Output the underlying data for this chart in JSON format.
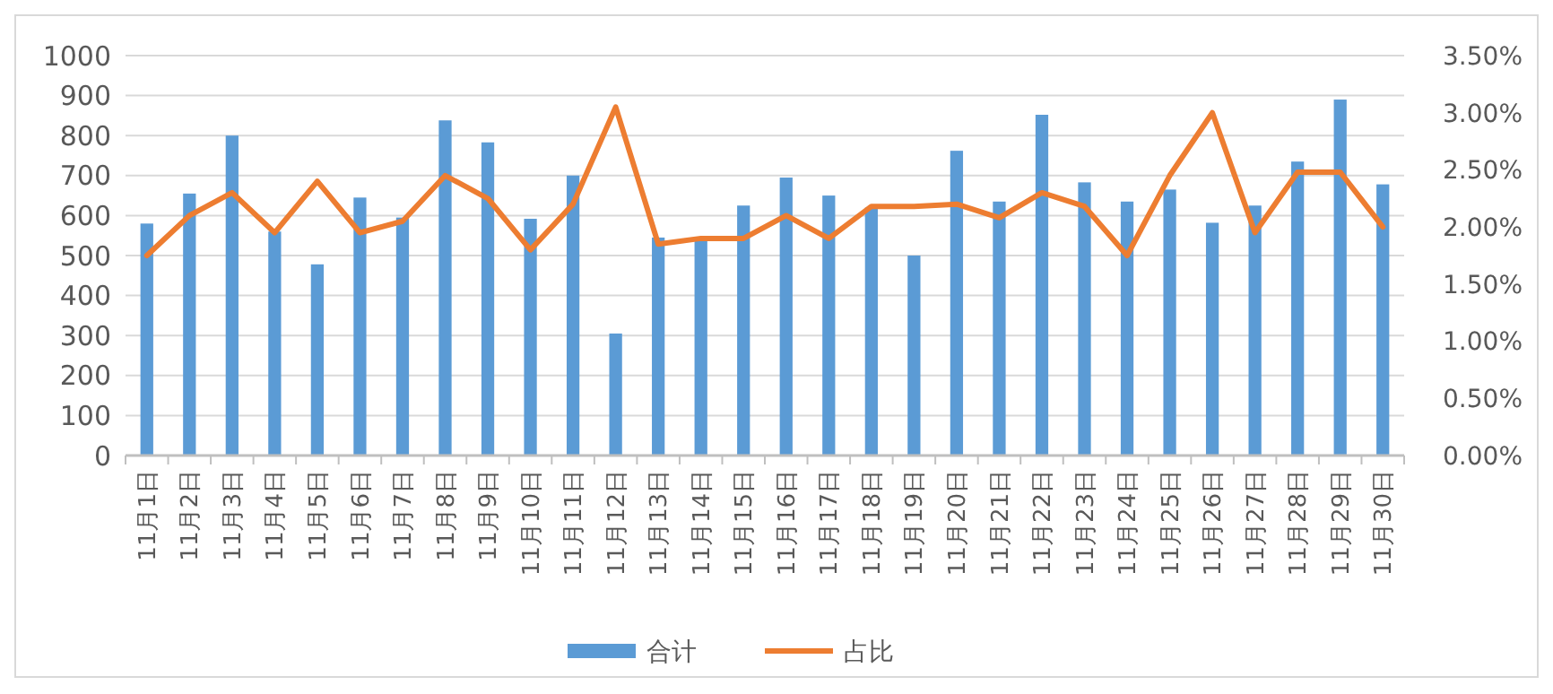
{
  "chart_data": {
    "type": "bar",
    "categories": [
      "11月1日",
      "11月2日",
      "11月3日",
      "11月4日",
      "11月5日",
      "11月6日",
      "11月7日",
      "11月8日",
      "11月9日",
      "11月10日",
      "11月11日",
      "11月12日",
      "11月13日",
      "11月14日",
      "11月15日",
      "11月16日",
      "11月17日",
      "11月18日",
      "11月19日",
      "11月20日",
      "11月21日",
      "11月22日",
      "11月23日",
      "11月24日",
      "11月25日",
      "11月26日",
      "11月27日",
      "11月28日",
      "11月29日",
      "11月30日"
    ],
    "series": [
      {
        "name": "合计",
        "color": "#5b9bd5",
        "values": [
          580,
          655,
          800,
          560,
          478,
          645,
          595,
          838,
          783,
          592,
          700,
          305,
          545,
          545,
          625,
          695,
          650,
          620,
          500,
          762,
          635,
          852,
          683,
          635,
          665,
          582,
          625,
          735,
          890,
          678
        ]
      },
      {
        "name": "占比",
        "type": "line",
        "axis": "y2",
        "color": "#ed7d31",
        "values": [
          1.75,
          2.1,
          2.3,
          1.95,
          2.4,
          1.95,
          2.05,
          2.45,
          2.25,
          1.8,
          2.2,
          3.05,
          1.85,
          1.9,
          1.9,
          2.1,
          1.9,
          2.18,
          2.18,
          2.2,
          2.08,
          2.3,
          2.18,
          1.75,
          2.45,
          3.0,
          1.95,
          2.48,
          2.48,
          2.0
        ]
      }
    ],
    "ylim": [
      0,
      1000
    ],
    "yticks": [
      0,
      100,
      200,
      300,
      400,
      500,
      600,
      700,
      800,
      900,
      1000
    ],
    "y2lim": [
      0,
      3.5
    ],
    "y2ticks": [
      {
        "value": 0,
        "label": "0.00%"
      },
      {
        "value": 0.5,
        "label": "0.50%"
      },
      {
        "value": 1,
        "label": "1.00%"
      },
      {
        "value": 1.5,
        "label": "1.50%"
      },
      {
        "value": 2,
        "label": "2.00%"
      },
      {
        "value": 2.5,
        "label": "2.50%"
      },
      {
        "value": 3,
        "label": "3.00%"
      },
      {
        "value": 3.5,
        "label": "3.50%"
      }
    ],
    "grid": "y",
    "legend": "bottom",
    "marker": "none",
    "line_style": "solid"
  }
}
